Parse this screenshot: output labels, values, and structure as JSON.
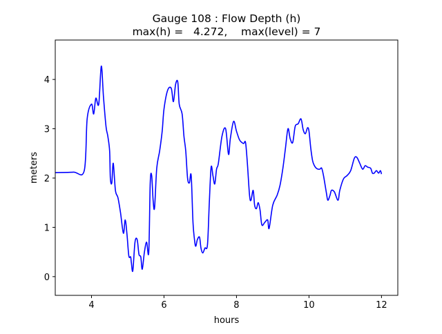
{
  "chart_data": {
    "type": "line",
    "title": "Gauge 108 : Flow Depth (h)",
    "subtitle": "max(h) =   4.272,    max(level) = 7",
    "xlabel": "hours",
    "ylabel": "meters",
    "xlim": [
      3.0,
      12.45
    ],
    "ylim": [
      -0.38,
      4.8
    ],
    "x_ticks": [
      4,
      6,
      8,
      10,
      12
    ],
    "y_ticks": [
      0,
      1,
      2,
      3,
      4
    ],
    "grid": false,
    "legend": "none",
    "series": [
      {
        "color": "#0000ff",
        "points": [
          [
            3.0,
            2.11
          ],
          [
            3.5,
            2.12
          ],
          [
            3.8,
            2.15
          ],
          [
            3.88,
            3.2
          ],
          [
            4.0,
            3.5
          ],
          [
            4.06,
            3.3
          ],
          [
            4.12,
            3.62
          ],
          [
            4.2,
            3.5
          ],
          [
            4.27,
            4.27
          ],
          [
            4.33,
            3.65
          ],
          [
            4.4,
            3.05
          ],
          [
            4.45,
            2.85
          ],
          [
            4.5,
            2.55
          ],
          [
            4.52,
            2.0
          ],
          [
            4.56,
            1.9
          ],
          [
            4.6,
            2.3
          ],
          [
            4.66,
            1.75
          ],
          [
            4.73,
            1.6
          ],
          [
            4.8,
            1.3
          ],
          [
            4.88,
            0.88
          ],
          [
            4.93,
            1.15
          ],
          [
            4.98,
            0.85
          ],
          [
            5.03,
            0.42
          ],
          [
            5.08,
            0.4
          ],
          [
            5.1,
            0.28
          ],
          [
            5.14,
            0.12
          ],
          [
            5.2,
            0.7
          ],
          [
            5.26,
            0.75
          ],
          [
            5.31,
            0.45
          ],
          [
            5.36,
            0.4
          ],
          [
            5.4,
            0.15
          ],
          [
            5.46,
            0.5
          ],
          [
            5.52,
            0.7
          ],
          [
            5.58,
            0.5
          ],
          [
            5.62,
            1.9
          ],
          [
            5.66,
            2.05
          ],
          [
            5.7,
            1.55
          ],
          [
            5.74,
            1.4
          ],
          [
            5.8,
            2.2
          ],
          [
            5.88,
            2.55
          ],
          [
            5.95,
            2.95
          ],
          [
            6.0,
            3.4
          ],
          [
            6.1,
            3.78
          ],
          [
            6.2,
            3.82
          ],
          [
            6.26,
            3.55
          ],
          [
            6.32,
            3.9
          ],
          [
            6.38,
            3.95
          ],
          [
            6.42,
            3.5
          ],
          [
            6.5,
            3.3
          ],
          [
            6.55,
            2.85
          ],
          [
            6.6,
            2.55
          ],
          [
            6.65,
            2.0
          ],
          [
            6.7,
            1.9
          ],
          [
            6.75,
            2.05
          ],
          [
            6.8,
            1.1
          ],
          [
            6.85,
            0.7
          ],
          [
            6.88,
            0.62
          ],
          [
            6.92,
            0.75
          ],
          [
            6.98,
            0.8
          ],
          [
            7.02,
            0.58
          ],
          [
            7.07,
            0.48
          ],
          [
            7.13,
            0.58
          ],
          [
            7.2,
            0.65
          ],
          [
            7.25,
            1.5
          ],
          [
            7.3,
            2.22
          ],
          [
            7.35,
            2.05
          ],
          [
            7.4,
            1.88
          ],
          [
            7.45,
            2.18
          ],
          [
            7.5,
            2.3
          ],
          [
            7.6,
            2.85
          ],
          [
            7.7,
            3.0
          ],
          [
            7.78,
            2.48
          ],
          [
            7.83,
            2.8
          ],
          [
            7.92,
            3.15
          ],
          [
            8.0,
            2.95
          ],
          [
            8.08,
            2.78
          ],
          [
            8.15,
            2.72
          ],
          [
            8.2,
            2.7
          ],
          [
            8.25,
            2.72
          ],
          [
            8.3,
            2.3
          ],
          [
            8.36,
            1.65
          ],
          [
            8.4,
            1.55
          ],
          [
            8.46,
            1.75
          ],
          [
            8.5,
            1.45
          ],
          [
            8.55,
            1.38
          ],
          [
            8.6,
            1.5
          ],
          [
            8.65,
            1.35
          ],
          [
            8.7,
            1.05
          ],
          [
            8.78,
            1.1
          ],
          [
            8.86,
            1.15
          ],
          [
            8.9,
            0.98
          ],
          [
            9.0,
            1.45
          ],
          [
            9.12,
            1.65
          ],
          [
            9.2,
            1.85
          ],
          [
            9.28,
            2.2
          ],
          [
            9.35,
            2.6
          ],
          [
            9.42,
            3.0
          ],
          [
            9.48,
            2.8
          ],
          [
            9.55,
            2.72
          ],
          [
            9.62,
            3.05
          ],
          [
            9.7,
            3.1
          ],
          [
            9.78,
            3.2
          ],
          [
            9.84,
            2.98
          ],
          [
            9.9,
            2.9
          ],
          [
            9.96,
            3.02
          ],
          [
            10.0,
            2.95
          ],
          [
            10.05,
            2.6
          ],
          [
            10.1,
            2.35
          ],
          [
            10.15,
            2.25
          ],
          [
            10.2,
            2.2
          ],
          [
            10.25,
            2.18
          ],
          [
            10.3,
            2.18
          ],
          [
            10.35,
            2.2
          ],
          [
            10.4,
            2.05
          ],
          [
            10.48,
            1.7
          ],
          [
            10.52,
            1.55
          ],
          [
            10.58,
            1.65
          ],
          [
            10.62,
            1.75
          ],
          [
            10.7,
            1.72
          ],
          [
            10.8,
            1.55
          ],
          [
            10.85,
            1.75
          ],
          [
            10.95,
            1.98
          ],
          [
            11.05,
            2.05
          ],
          [
            11.15,
            2.15
          ],
          [
            11.25,
            2.4
          ],
          [
            11.32,
            2.42
          ],
          [
            11.4,
            2.3
          ],
          [
            11.48,
            2.18
          ],
          [
            11.55,
            2.25
          ],
          [
            11.62,
            2.22
          ],
          [
            11.7,
            2.2
          ],
          [
            11.75,
            2.1
          ],
          [
            11.8,
            2.1
          ],
          [
            11.86,
            2.15
          ],
          [
            11.92,
            2.1
          ],
          [
            11.97,
            2.15
          ],
          [
            12.0,
            2.08
          ]
        ]
      }
    ]
  }
}
